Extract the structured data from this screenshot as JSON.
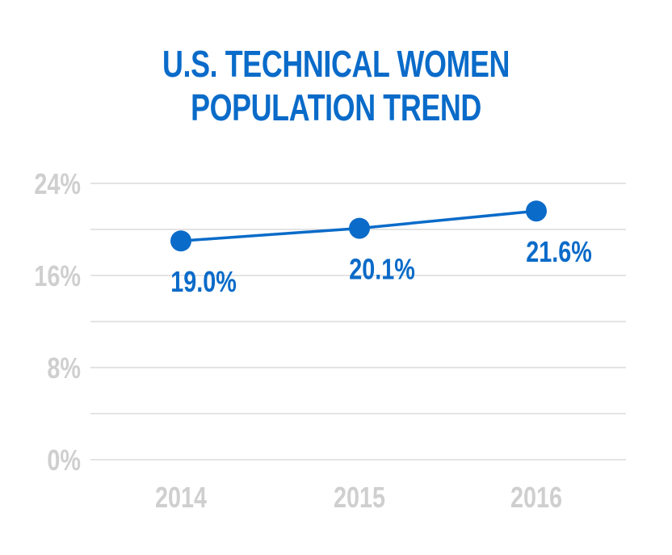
{
  "chart_data": {
    "type": "line",
    "title_lines": [
      "U.S. TECHNICAL WOMEN",
      "POPULATION TREND"
    ],
    "categories": [
      "2014",
      "2015",
      "2016"
    ],
    "values": [
      19.0,
      20.1,
      21.6
    ],
    "data_labels": [
      "19.0%",
      "20.1%",
      "21.6%"
    ],
    "ylim": [
      0,
      24
    ],
    "yticks": [
      0,
      8,
      16,
      24
    ],
    "ytick_labels": [
      "0%",
      "8%",
      "16%",
      "24%"
    ],
    "grid": true,
    "colors": {
      "series": "#0a6bc9",
      "title": "#0a6bc9",
      "axis_text": "#cfcfcf",
      "grid": "#d4d4d4"
    }
  }
}
